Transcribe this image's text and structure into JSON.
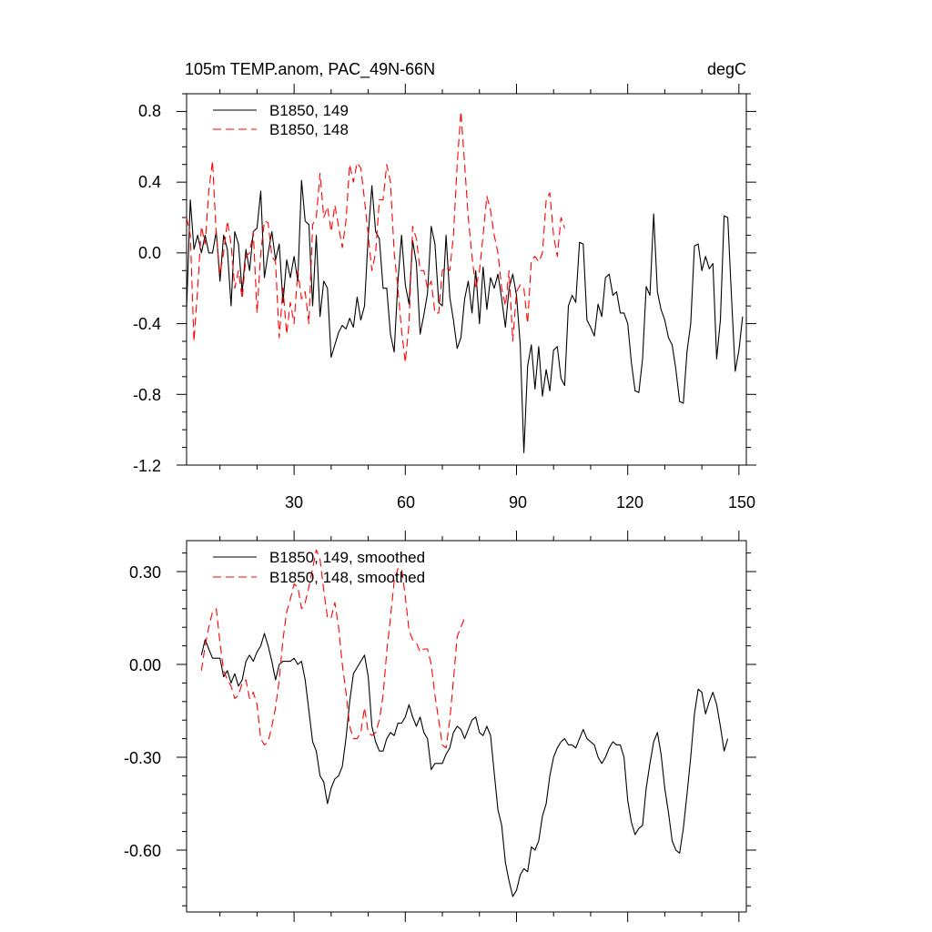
{
  "colors": {
    "series_149": "#000000",
    "series_148": "#ff0000",
    "background": "#ffffff"
  },
  "chart_data": [
    {
      "type": "line",
      "title": "105m TEMP.anom, PAC_49N-66N",
      "units": "degC",
      "xlim": [
        1,
        152
      ],
      "ylim": [
        -1.2,
        0.9
      ],
      "xticks": [
        30,
        60,
        90,
        120,
        150
      ],
      "yticks": [
        0.8,
        0.4,
        0.0,
        -0.4,
        -0.8,
        -1.2
      ],
      "ytick_labels": [
        "0.8",
        "0.4",
        "0.0",
        "-0.4",
        "-0.8",
        "-1.2"
      ],
      "xtick_labels": [
        "30",
        "60",
        "90",
        "120",
        "150"
      ],
      "series": [
        {
          "name": "B1850, 149",
          "color": "#000000",
          "dash": "solid",
          "x_start": 1,
          "values": [
            -0.32,
            0.3,
            0.02,
            0.1,
            0.0,
            0.1,
            0.0,
            0.0,
            0.12,
            -0.16,
            0.1,
            0.02,
            -0.3,
            0.12,
            0.05,
            -0.22,
            0.02,
            -0.1,
            0.12,
            0.14,
            0.35,
            -0.14,
            0.0,
            0.12,
            -0.04,
            0.05,
            -0.28,
            -0.04,
            -0.14,
            -0.02,
            -0.16,
            0.41,
            0.18,
            0.16,
            -0.3,
            0.1,
            -0.36,
            -0.16,
            -0.2,
            -0.59,
            -0.52,
            -0.45,
            -0.41,
            -0.43,
            -0.37,
            -0.42,
            -0.25,
            -0.38,
            -0.3,
            0.1,
            0.38,
            0.12,
            0.08,
            -0.2,
            -0.2,
            -0.46,
            -0.56,
            -0.16,
            0.1,
            -0.18,
            -0.29,
            0.07,
            -0.06,
            -0.46,
            -0.35,
            -0.23,
            0.15,
            0.05,
            -0.28,
            -0.3,
            0.1,
            -0.25,
            -0.38,
            -0.54,
            -0.48,
            -0.26,
            -0.16,
            -0.34,
            -0.1,
            -0.4,
            -0.08,
            -0.32,
            -0.14,
            -0.2,
            -0.12,
            -0.26,
            -0.42,
            -0.2,
            -0.12,
            -0.24,
            -0.52,
            -1.13,
            -0.64,
            -0.52,
            -0.77,
            -0.53,
            -0.81,
            -0.66,
            -0.78,
            -0.55,
            -0.53,
            -0.71,
            -0.75,
            -0.3,
            -0.24,
            -0.28,
            0.06,
            0.05,
            -0.38,
            -0.42,
            -0.47,
            -0.29,
            -0.36,
            -0.14,
            -0.12,
            -0.24,
            -0.22,
            -0.34,
            -0.34,
            -0.4,
            -0.62,
            -0.78,
            -0.79,
            -0.6,
            -0.19,
            -0.24,
            0.22,
            -0.22,
            -0.32,
            -0.38,
            -0.48,
            -0.52,
            -0.66,
            -0.84,
            -0.85,
            -0.56,
            -0.4,
            0.04,
            0.05,
            -0.1,
            -0.02,
            -0.09,
            -0.06,
            -0.6,
            -0.38,
            0.21,
            0.2,
            -0.25,
            -0.67,
            -0.55,
            -0.36
          ]
        },
        {
          "name": "B1850, 148",
          "color": "#ff0000",
          "dash": "dashed",
          "x_start": 1,
          "values": [
            0.2,
            0.1,
            -0.5,
            -0.2,
            0.15,
            0.05,
            0.35,
            0.52,
            0.1,
            -0.12,
            0.0,
            0.18,
            0.05,
            -0.2,
            -0.1,
            -0.26,
            -0.02,
            0.0,
            0.12,
            -0.34,
            0.0,
            0.18,
            0.17,
            -0.02,
            -0.05,
            -0.48,
            -0.2,
            -0.46,
            -0.28,
            -0.4,
            -0.1,
            -0.26,
            -0.22,
            -0.4,
            0.16,
            0.2,
            0.45,
            0.2,
            0.26,
            0.12,
            0.27,
            0.15,
            0.03,
            0.18,
            0.5,
            0.4,
            0.51,
            0.48,
            0.3,
            0.1,
            -0.1,
            0.0,
            0.3,
            0.3,
            0.5,
            0.4,
            0.0,
            -0.2,
            -0.44,
            -0.62,
            -0.4,
            0.15,
            0.08,
            -0.1,
            -0.1,
            -0.2,
            -0.16,
            -0.34,
            -0.34,
            -0.1,
            -0.08,
            -0.1,
            0.1,
            0.5,
            0.8,
            0.5,
            0.2,
            -0.02,
            -0.2,
            -0.1,
            0.1,
            0.32,
            0.24,
            0.1,
            0.0,
            -0.2,
            -0.3,
            -0.1,
            -0.5,
            -0.22,
            -0.18,
            -0.2,
            -0.4,
            -0.04,
            -0.02,
            -0.05,
            0.0,
            0.3,
            0.34,
            0.1,
            -0.02,
            0.2,
            0.14
          ]
        }
      ]
    },
    {
      "type": "line",
      "title": "",
      "xlim": [
        1,
        152
      ],
      "ylim": [
        -0.8,
        0.4
      ],
      "xticks": [
        30,
        60,
        90,
        120,
        150
      ],
      "yticks": [
        0.3,
        0.0,
        -0.3,
        -0.6
      ],
      "ytick_labels": [
        "0.30",
        "0.00",
        "-0.30",
        "-0.60"
      ],
      "xtick_labels": [],
      "series": [
        {
          "name": "B1850, 149, smoothed",
          "color": "#000000",
          "dash": "solid",
          "x_start": 5,
          "values": [
            0.03,
            0.08,
            0.05,
            0.02,
            0.02,
            0.02,
            -0.04,
            -0.02,
            -0.06,
            -0.03,
            -0.07,
            -0.05,
            0.01,
            0.03,
            0.01,
            0.04,
            0.06,
            0.1,
            0.06,
            0.01,
            -0.05,
            0.0,
            0.01,
            0.01,
            0.01,
            0.02,
            0.0,
            0.01,
            -0.05,
            -0.15,
            -0.25,
            -0.28,
            -0.36,
            -0.38,
            -0.45,
            -0.4,
            -0.37,
            -0.36,
            -0.33,
            -0.24,
            -0.12,
            -0.03,
            -0.01,
            0.01,
            0.03,
            -0.04,
            -0.2,
            -0.25,
            -0.28,
            -0.28,
            -0.24,
            -0.22,
            -0.23,
            -0.19,
            -0.19,
            -0.17,
            -0.13,
            -0.17,
            -0.2,
            -0.17,
            -0.22,
            -0.24,
            -0.34,
            -0.32,
            -0.32,
            -0.32,
            -0.29,
            -0.27,
            -0.22,
            -0.2,
            -0.21,
            -0.24,
            -0.21,
            -0.18,
            -0.17,
            -0.22,
            -0.23,
            -0.2,
            -0.23,
            -0.35,
            -0.47,
            -0.52,
            -0.64,
            -0.7,
            -0.75,
            -0.73,
            -0.68,
            -0.66,
            -0.67,
            -0.59,
            -0.6,
            -0.57,
            -0.49,
            -0.45,
            -0.36,
            -0.3,
            -0.27,
            -0.25,
            -0.24,
            -0.26,
            -0.26,
            -0.27,
            -0.24,
            -0.21,
            -0.24,
            -0.25,
            -0.26,
            -0.3,
            -0.32,
            -0.3,
            -0.27,
            -0.25,
            -0.26,
            -0.26,
            -0.3,
            -0.44,
            -0.51,
            -0.55,
            -0.53,
            -0.52,
            -0.4,
            -0.32,
            -0.25,
            -0.22,
            -0.29,
            -0.4,
            -0.48,
            -0.57,
            -0.6,
            -0.61,
            -0.53,
            -0.42,
            -0.3,
            -0.16,
            -0.08,
            -0.09,
            -0.16,
            -0.12,
            -0.09,
            -0.13,
            -0.2,
            -0.28,
            -0.24
          ]
        },
        {
          "name": "B1850, 148, smoothed",
          "color": "#ff0000",
          "dash": "dashed",
          "x_start": 5,
          "values": [
            -0.02,
            0.06,
            0.12,
            0.17,
            0.18,
            0.07,
            -0.02,
            -0.05,
            -0.07,
            -0.11,
            -0.1,
            -0.06,
            -0.05,
            -0.11,
            -0.09,
            -0.13,
            -0.24,
            -0.26,
            -0.25,
            -0.2,
            -0.14,
            -0.05,
            0.08,
            0.17,
            0.21,
            0.26,
            0.25,
            0.18,
            0.2,
            0.25,
            0.31,
            0.37,
            0.34,
            0.24,
            0.15,
            0.15,
            0.2,
            0.12,
            0.0,
            -0.09,
            -0.2,
            -0.24,
            -0.24,
            -0.22,
            -0.14,
            -0.22,
            -0.23,
            -0.22,
            -0.18,
            -0.1,
            0.04,
            0.15,
            0.27,
            0.31,
            0.31,
            0.22,
            0.11,
            0.08,
            0.07,
            0.04,
            0.05,
            0.05,
            0.0,
            -0.1,
            -0.18,
            -0.26,
            -0.27,
            -0.18,
            -0.05,
            0.09,
            0.12,
            0.15
          ]
        }
      ]
    }
  ]
}
